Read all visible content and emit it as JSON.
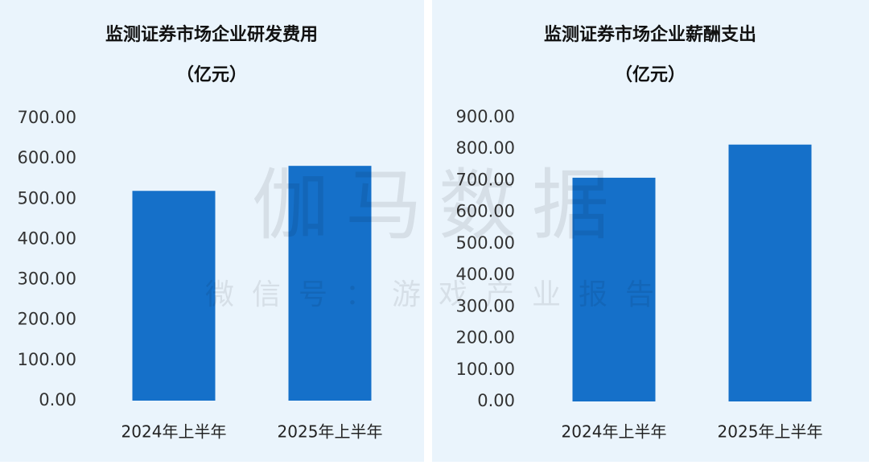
{
  "chart_data": [
    {
      "type": "bar",
      "title": [
        "监测证券市场企业研发费用",
        "（亿元）"
      ],
      "categories": [
        "2024年上半年",
        "2025年上半年"
      ],
      "values": [
        520,
        582
      ],
      "color": "#1570c9",
      "ylim": [
        0,
        700
      ],
      "yticks": [
        {
          "value": 0,
          "label": "0.00"
        },
        {
          "value": 100,
          "label": "100.00"
        },
        {
          "value": 200,
          "label": "200.00"
        },
        {
          "value": 300,
          "label": "300.00"
        },
        {
          "value": 400,
          "label": "400.00"
        },
        {
          "value": 500,
          "label": "500.00"
        },
        {
          "value": 600,
          "label": "600.00"
        },
        {
          "value": 700,
          "label": "700.00"
        }
      ],
      "grid": false
    },
    {
      "type": "bar",
      "title": [
        "监测证券市场企业薪酬支出",
        "（亿元）"
      ],
      "categories": [
        "2024年上半年",
        "2025年上半年"
      ],
      "values": [
        709,
        814
      ],
      "color": "#1570c9",
      "ylim": [
        0,
        900
      ],
      "yticks": [
        {
          "value": 0,
          "label": "0.00"
        },
        {
          "value": 100,
          "label": "100.00"
        },
        {
          "value": 200,
          "label": "200.00"
        },
        {
          "value": 300,
          "label": "300.00"
        },
        {
          "value": 400,
          "label": "400.00"
        },
        {
          "value": 500,
          "label": "500.00"
        },
        {
          "value": 600,
          "label": "600.00"
        },
        {
          "value": 700,
          "label": "700.00"
        },
        {
          "value": 800,
          "label": "800.00"
        },
        {
          "value": 900,
          "label": "900.00"
        }
      ],
      "grid": false
    }
  ],
  "watermark": {
    "main": "伽马数据",
    "sub": "微信号：游戏产业报告"
  }
}
